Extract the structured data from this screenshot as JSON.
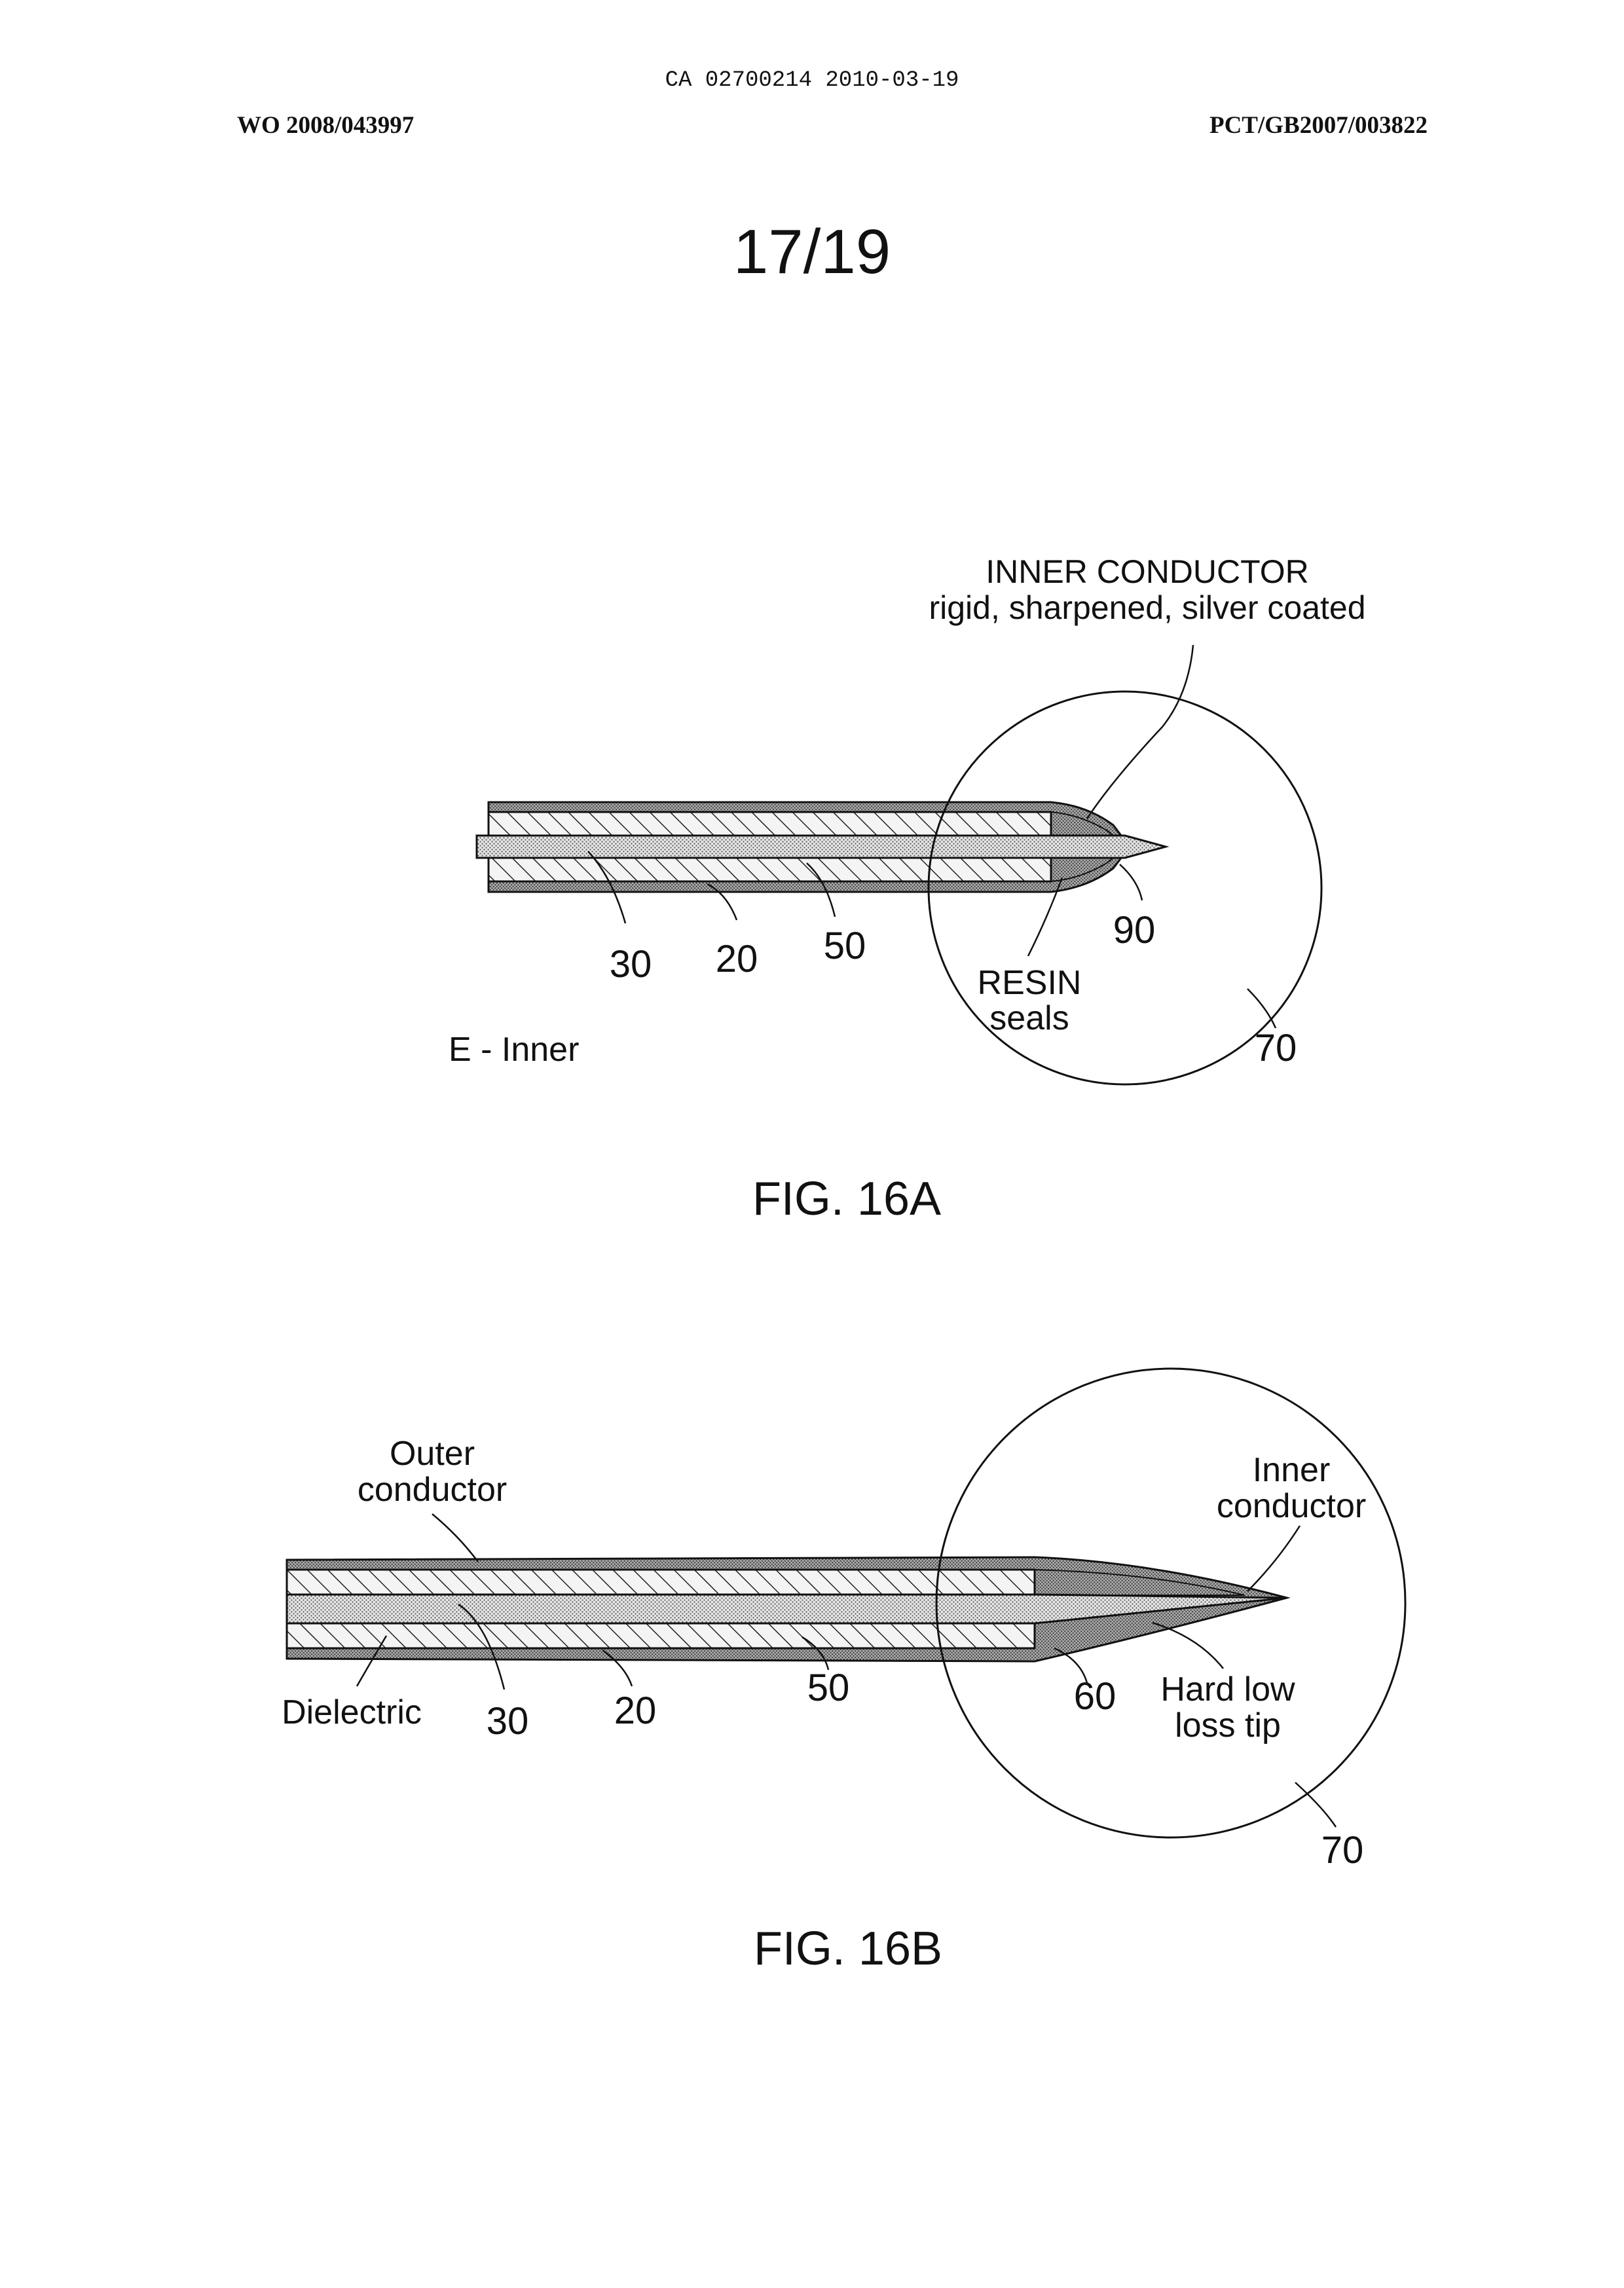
{
  "header": {
    "doc_id": "CA 02700214 2010-03-19",
    "left": "WO 2008/043997",
    "right": "PCT/GB2007/003822",
    "sheet": "17/19"
  },
  "fig16a": {
    "caption": "FIG. 16A",
    "title_line1": "INNER CONDUCTOR",
    "title_line2": "rigid, sharpened, silver coated",
    "ref_30": "30",
    "ref_20": "20",
    "ref_50": "50",
    "ref_90": "90",
    "ref_70": "70",
    "resin_line1": "RESIN",
    "resin_line2": "seals",
    "variant": "E - Inner"
  },
  "fig16b": {
    "caption": "FIG. 16B",
    "outer_line1": "Outer",
    "outer_line2": "conductor",
    "inner_line1": "Inner",
    "inner_line2": "conductor",
    "dielectric": "Dielectric",
    "ref_30": "30",
    "ref_20": "20",
    "ref_50": "50",
    "ref_60": "60",
    "ref_70": "70",
    "tip_line1": "Hard low",
    "tip_line2": "loss tip"
  }
}
